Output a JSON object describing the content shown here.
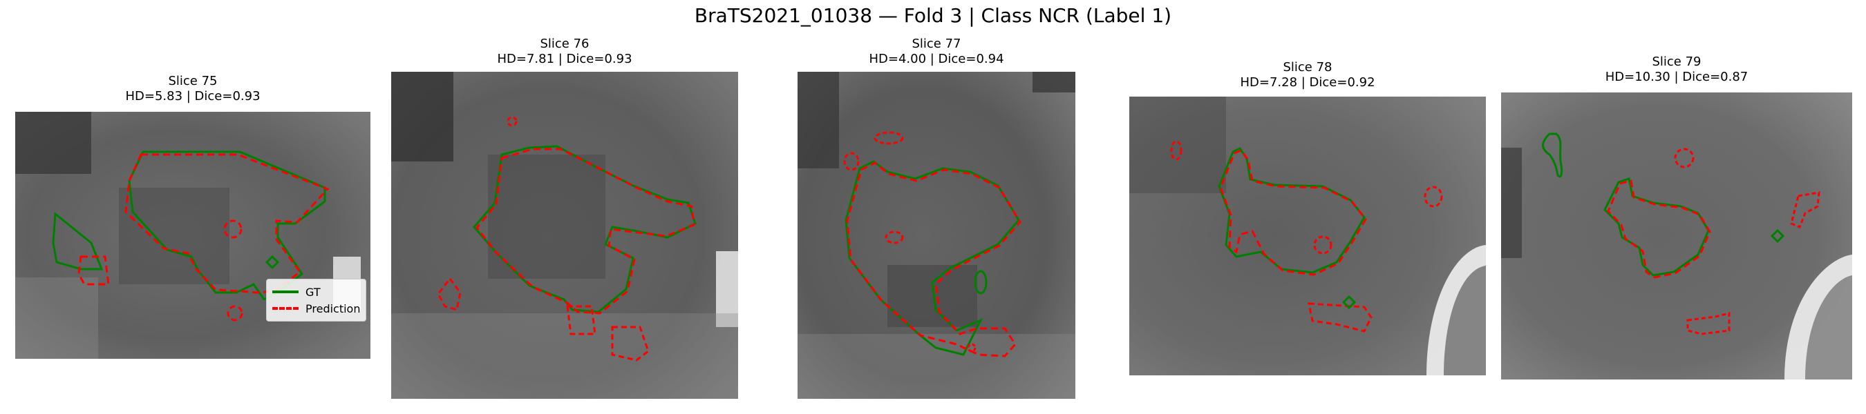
{
  "figure": {
    "title": "BraTS2021_01038 — Fold 3 | Class NCR (Label 1)"
  },
  "panels": [
    {
      "slice": "Slice 75",
      "metrics": "HD=5.83 | Dice=0.93"
    },
    {
      "slice": "Slice 76",
      "metrics": "HD=7.81 | Dice=0.93"
    },
    {
      "slice": "Slice 77",
      "metrics": "HD=4.00 | Dice=0.94"
    },
    {
      "slice": "Slice 78",
      "metrics": "HD=7.28 | Dice=0.92"
    },
    {
      "slice": "Slice 79",
      "metrics": "HD=10.30 | Dice=0.87"
    }
  ],
  "legend": {
    "gt_label": "GT",
    "pred_label": "Prediction",
    "gt_color": "#008000",
    "pred_color": "#ff0000"
  }
}
